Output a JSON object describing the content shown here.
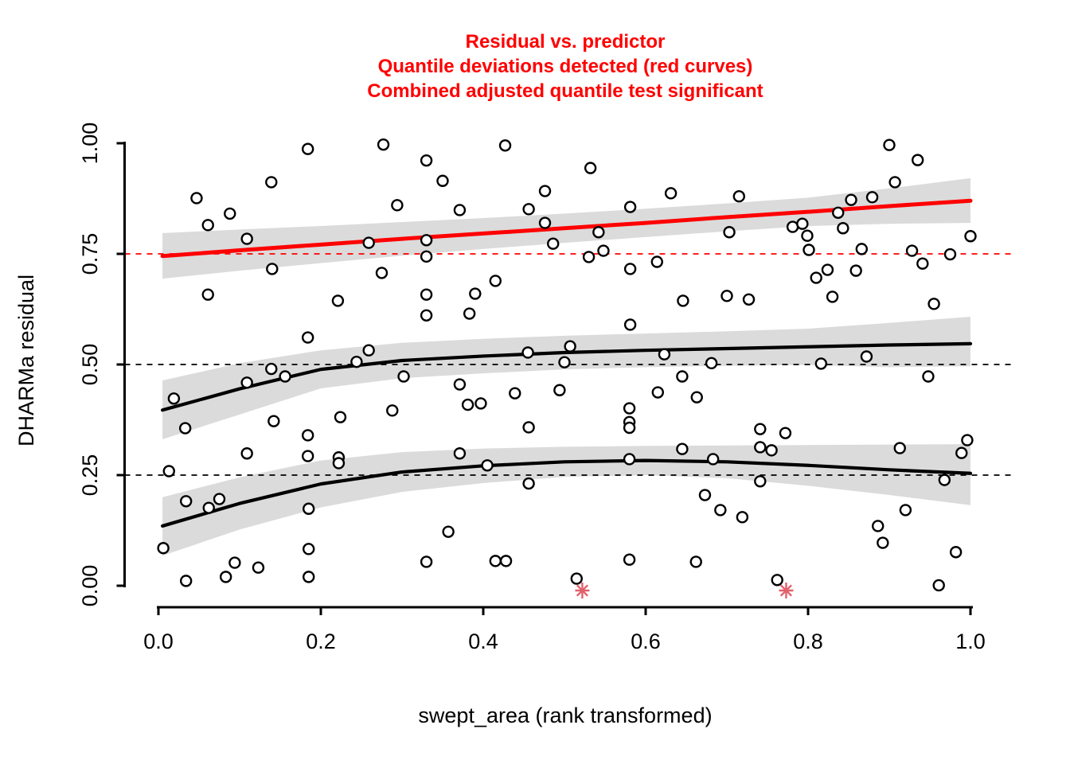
{
  "title": {
    "lines": [
      "Residual vs. predictor",
      "Quantile deviations detected (red curves)",
      "Combined adjusted quantile test significant"
    ],
    "color": "#FF0000"
  },
  "colors": {
    "background": "#FFFFFF",
    "band": "#DBDBDB",
    "axis": "#000000",
    "significant_curve": "#FF0000",
    "normal_curve": "#000000",
    "outlier_marker": "#E2606B",
    "point_stroke": "#000000",
    "point_fill": "#FFFFFF"
  },
  "chart_data": {
    "type": "scatter",
    "title_lines": [
      "Residual vs. predictor",
      "Quantile deviations detected (red curves)",
      "Combined adjusted quantile test significant"
    ],
    "xlabel": "swept_area (rank transformed)",
    "ylabel": "DHARMa residual",
    "xlim": [
      0,
      1
    ],
    "ylim": [
      0,
      1
    ],
    "grid": false,
    "x_ticks": {
      "values": [
        0.0,
        0.2,
        0.4,
        0.6,
        0.8,
        1.0
      ],
      "labels": [
        "0.0",
        "0.2",
        "0.4",
        "0.6",
        "0.8",
        "1.0"
      ]
    },
    "y_ticks": {
      "values": [
        0.0,
        0.25,
        0.5,
        0.75,
        1.0
      ],
      "labels": [
        "0.00",
        "0.25",
        "0.50",
        "0.75",
        "1.00"
      ]
    },
    "ref_lines": [
      {
        "y": 0.25,
        "color": "#000000",
        "style": "dashed"
      },
      {
        "y": 0.5,
        "color": "#000000",
        "style": "dashed"
      },
      {
        "y": 0.75,
        "color": "#FF0000",
        "style": "dashed"
      }
    ],
    "quantile_curves": [
      {
        "name": "quantile-0.25",
        "significant": false,
        "color": "#000000",
        "x": [
          0.005,
          0.1,
          0.2,
          0.3,
          0.4,
          0.5,
          0.6,
          0.7,
          0.8,
          0.9,
          1.0
        ],
        "y": [
          0.135,
          0.186,
          0.23,
          0.257,
          0.271,
          0.28,
          0.283,
          0.28,
          0.272,
          0.262,
          0.254
        ],
        "band_top": [
          0.2,
          0.245,
          0.283,
          0.302,
          0.31,
          0.314,
          0.316,
          0.317,
          0.318,
          0.319,
          0.32
        ],
        "band_bottom": [
          0.068,
          0.127,
          0.177,
          0.212,
          0.232,
          0.246,
          0.25,
          0.243,
          0.226,
          0.205,
          0.182
        ]
      },
      {
        "name": "quantile-0.50",
        "significant": false,
        "color": "#000000",
        "x": [
          0.005,
          0.1,
          0.2,
          0.3,
          0.4,
          0.5,
          0.6,
          0.7,
          0.8,
          0.9,
          1.0
        ],
        "y": [
          0.397,
          0.445,
          0.489,
          0.509,
          0.519,
          0.527,
          0.532,
          0.536,
          0.54,
          0.544,
          0.547
        ],
        "band_top": [
          0.464,
          0.503,
          0.532,
          0.549,
          0.558,
          0.565,
          0.57,
          0.575,
          0.581,
          0.594,
          0.608
        ],
        "band_bottom": [
          0.331,
          0.387,
          0.446,
          0.469,
          0.48,
          0.489,
          0.494,
          0.497,
          0.499,
          0.494,
          0.496
        ]
      },
      {
        "name": "quantile-0.75",
        "significant": true,
        "color": "#FF0000",
        "x": [
          0.005,
          0.1,
          0.2,
          0.3,
          0.4,
          0.5,
          0.6,
          0.7,
          0.8,
          0.9,
          1.0
        ],
        "y": [
          0.745,
          0.758,
          0.771,
          0.784,
          0.796,
          0.808,
          0.82,
          0.833,
          0.845,
          0.858,
          0.87
        ],
        "band_top": [
          0.797,
          0.805,
          0.813,
          0.822,
          0.831,
          0.841,
          0.852,
          0.864,
          0.877,
          0.898,
          0.921
        ],
        "band_bottom": [
          0.694,
          0.712,
          0.729,
          0.746,
          0.761,
          0.775,
          0.788,
          0.801,
          0.813,
          0.818,
          0.82
        ]
      }
    ],
    "points": [
      [
        0.184,
        0.987
      ],
      [
        0.277,
        0.997
      ],
      [
        0.33,
        0.961
      ],
      [
        0.139,
        0.912
      ],
      [
        0.047,
        0.876
      ],
      [
        0.088,
        0.841
      ],
      [
        0.061,
        0.815
      ],
      [
        0.294,
        0.86
      ],
      [
        0.109,
        0.784
      ],
      [
        0.259,
        0.775
      ],
      [
        0.33,
        0.781
      ],
      [
        0.33,
        0.744
      ],
      [
        0.14,
        0.716
      ],
      [
        0.275,
        0.707
      ],
      [
        0.061,
        0.658
      ],
      [
        0.221,
        0.644
      ],
      [
        0.33,
        0.658
      ],
      [
        0.33,
        0.611
      ],
      [
        0.184,
        0.561
      ],
      [
        0.259,
        0.532
      ],
      [
        0.244,
        0.506
      ],
      [
        0.139,
        0.49
      ],
      [
        0.427,
        0.995
      ],
      [
        0.532,
        0.944
      ],
      [
        0.35,
        0.915
      ],
      [
        0.476,
        0.892
      ],
      [
        0.371,
        0.849
      ],
      [
        0.456,
        0.851
      ],
      [
        0.631,
        0.887
      ],
      [
        0.581,
        0.856
      ],
      [
        0.476,
        0.82
      ],
      [
        0.542,
        0.799
      ],
      [
        0.486,
        0.773
      ],
      [
        0.53,
        0.743
      ],
      [
        0.548,
        0.757
      ],
      [
        0.581,
        0.716
      ],
      [
        0.614,
        0.732
      ],
      [
        0.415,
        0.689
      ],
      [
        0.39,
        0.66
      ],
      [
        0.383,
        0.615
      ],
      [
        0.581,
        0.59
      ],
      [
        0.646,
        0.644
      ],
      [
        0.7,
        0.655
      ],
      [
        0.507,
        0.541
      ],
      [
        0.455,
        0.527
      ],
      [
        0.623,
        0.523
      ],
      [
        0.5,
        0.505
      ],
      [
        0.681,
        0.503
      ],
      [
        0.9,
        0.996
      ],
      [
        0.935,
        0.962
      ],
      [
        0.907,
        0.912
      ],
      [
        0.715,
        0.88
      ],
      [
        0.853,
        0.872
      ],
      [
        0.879,
        0.878
      ],
      [
        0.837,
        0.843
      ],
      [
        0.781,
        0.811
      ],
      [
        0.793,
        0.818
      ],
      [
        0.799,
        0.791
      ],
      [
        0.703,
        0.799
      ],
      [
        0.843,
        0.808
      ],
      [
        1.0,
        0.79
      ],
      [
        0.801,
        0.759
      ],
      [
        0.866,
        0.761
      ],
      [
        0.928,
        0.757
      ],
      [
        0.975,
        0.749
      ],
      [
        0.941,
        0.728
      ],
      [
        0.824,
        0.714
      ],
      [
        0.81,
        0.696
      ],
      [
        0.859,
        0.712
      ],
      [
        0.83,
        0.653
      ],
      [
        0.727,
        0.647
      ],
      [
        0.955,
        0.637
      ],
      [
        0.872,
        0.518
      ],
      [
        0.816,
        0.502
      ],
      [
        0.019,
        0.423
      ],
      [
        0.033,
        0.356
      ],
      [
        0.156,
        0.473
      ],
      [
        0.109,
        0.459
      ],
      [
        0.302,
        0.473
      ],
      [
        0.288,
        0.396
      ],
      [
        0.142,
        0.372
      ],
      [
        0.224,
        0.381
      ],
      [
        0.184,
        0.34
      ],
      [
        0.109,
        0.299
      ],
      [
        0.184,
        0.293
      ],
      [
        0.222,
        0.29
      ],
      [
        0.222,
        0.277
      ],
      [
        0.013,
        0.259
      ],
      [
        0.034,
        0.191
      ],
      [
        0.062,
        0.176
      ],
      [
        0.075,
        0.196
      ],
      [
        0.185,
        0.174
      ],
      [
        0.006,
        0.085
      ],
      [
        0.185,
        0.083
      ],
      [
        0.094,
        0.052
      ],
      [
        0.123,
        0.041
      ],
      [
        0.083,
        0.02
      ],
      [
        0.034,
        0.011
      ],
      [
        0.185,
        0.02
      ],
      [
        0.645,
        0.473
      ],
      [
        0.371,
        0.455
      ],
      [
        0.439,
        0.435
      ],
      [
        0.494,
        0.442
      ],
      [
        0.397,
        0.412
      ],
      [
        0.381,
        0.409
      ],
      [
        0.615,
        0.437
      ],
      [
        0.663,
        0.426
      ],
      [
        0.58,
        0.401
      ],
      [
        0.58,
        0.37
      ],
      [
        0.58,
        0.357
      ],
      [
        0.456,
        0.358
      ],
      [
        0.371,
        0.299
      ],
      [
        0.645,
        0.309
      ],
      [
        0.405,
        0.272
      ],
      [
        0.58,
        0.286
      ],
      [
        0.683,
        0.286
      ],
      [
        0.456,
        0.231
      ],
      [
        0.673,
        0.205
      ],
      [
        0.692,
        0.171
      ],
      [
        0.357,
        0.122
      ],
      [
        0.33,
        0.054
      ],
      [
        0.415,
        0.056
      ],
      [
        0.428,
        0.056
      ],
      [
        0.58,
        0.059
      ],
      [
        0.662,
        0.054
      ],
      [
        0.515,
        0.016
      ],
      [
        0.948,
        0.473
      ],
      [
        0.741,
        0.354
      ],
      [
        0.772,
        0.345
      ],
      [
        0.741,
        0.313
      ],
      [
        0.755,
        0.306
      ],
      [
        0.913,
        0.311
      ],
      [
        0.996,
        0.329
      ],
      [
        0.989,
        0.3
      ],
      [
        0.741,
        0.236
      ],
      [
        0.968,
        0.239
      ],
      [
        0.719,
        0.155
      ],
      [
        0.92,
        0.171
      ],
      [
        0.886,
        0.135
      ],
      [
        0.892,
        0.097
      ],
      [
        0.982,
        0.076
      ],
      [
        0.762,
        0.013
      ],
      [
        0.961,
        0.001
      ]
    ],
    "outliers": {
      "marker": "star",
      "color": "#E2606B",
      "points": [
        [
          0.522,
          0.0
        ],
        [
          0.773,
          0.0
        ]
      ]
    },
    "legend": null
  }
}
